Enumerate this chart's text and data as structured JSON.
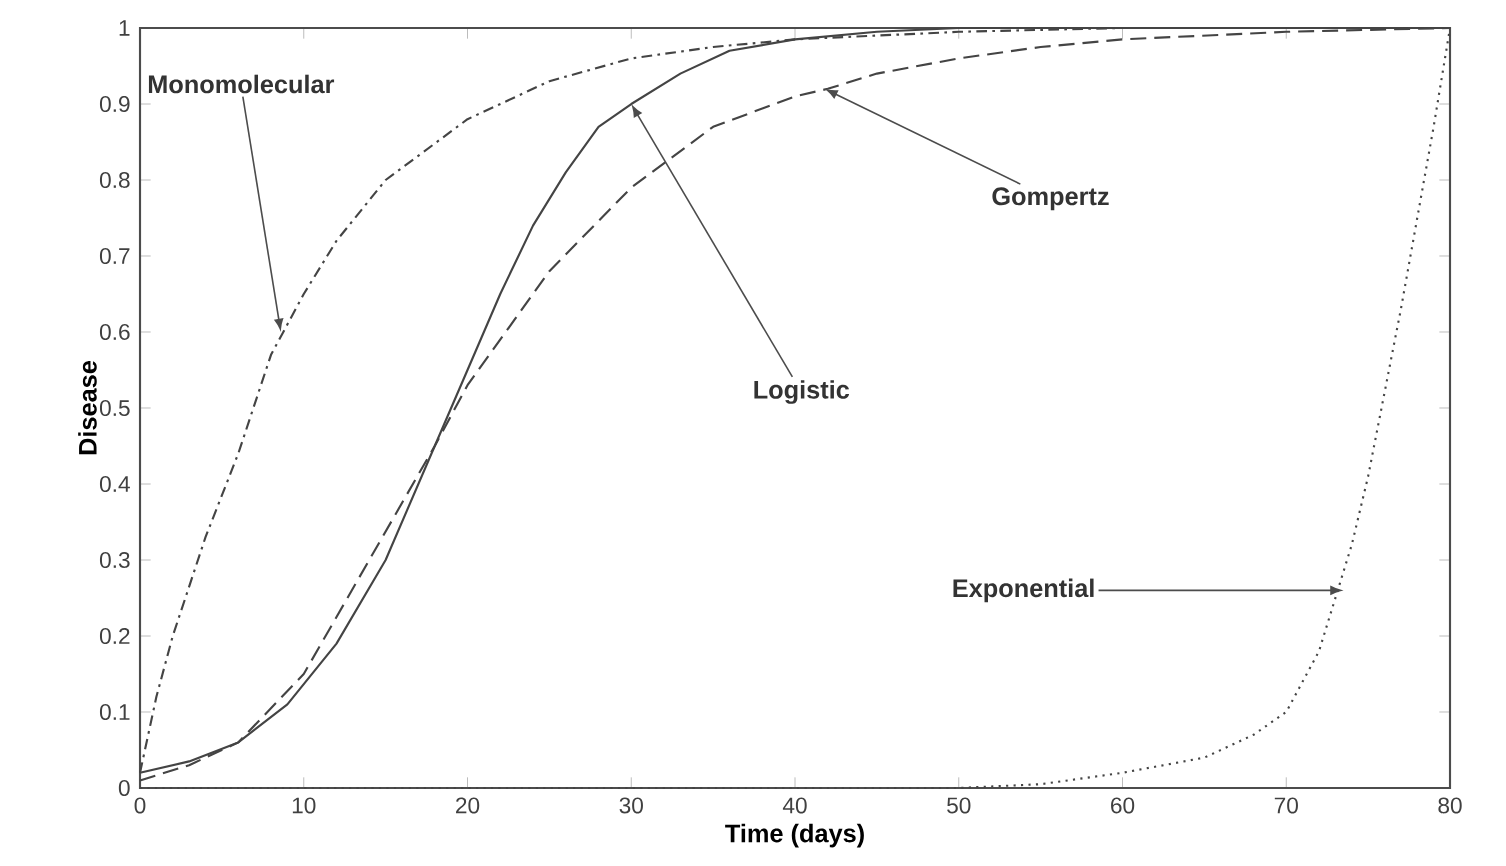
{
  "chart_data": {
    "type": "line",
    "xlabel": "Time (days)",
    "ylabel": "Disease",
    "xlim": [
      0,
      80
    ],
    "ylim": [
      0,
      1
    ],
    "xticks": [
      0,
      10,
      20,
      30,
      40,
      50,
      60,
      70,
      80
    ],
    "yticks": [
      0,
      0.1,
      0.2,
      0.3,
      0.4,
      0.5,
      0.6,
      0.7,
      0.8,
      0.9,
      1
    ],
    "series": [
      {
        "color": "#444444",
        "line_style": "dashdot",
        "x": [
          0,
          1,
          2,
          4,
          6,
          8,
          10,
          12,
          15,
          20,
          25,
          30,
          35,
          40,
          50,
          60,
          70,
          80
        ],
        "values": [
          0.02,
          0.12,
          0.2,
          0.33,
          0.44,
          0.57,
          0.65,
          0.72,
          0.8,
          0.88,
          0.93,
          0.96,
          0.975,
          0.985,
          0.995,
          1,
          1,
          1
        ]
      },
      {
        "color": "#444444",
        "line_style": "solid",
        "x": [
          0,
          3,
          6,
          9,
          12,
          15,
          18,
          20,
          22,
          24,
          26,
          28,
          30,
          33,
          36,
          40,
          45,
          50,
          60,
          70,
          80
        ],
        "values": [
          0.02,
          0.035,
          0.06,
          0.11,
          0.19,
          0.3,
          0.45,
          0.55,
          0.65,
          0.74,
          0.81,
          0.87,
          0.9,
          0.94,
          0.97,
          0.985,
          0.995,
          1,
          1,
          1,
          1
        ]
      },
      {
        "color": "#444444",
        "line_style": "dashed",
        "x": [
          0,
          3,
          6,
          10,
          14,
          18,
          20,
          25,
          30,
          35,
          40,
          42,
          45,
          50,
          55,
          60,
          70,
          80
        ],
        "values": [
          0.01,
          0.03,
          0.06,
          0.15,
          0.3,
          0.45,
          0.53,
          0.68,
          0.79,
          0.87,
          0.91,
          0.92,
          0.94,
          0.96,
          0.975,
          0.985,
          0.995,
          1
        ]
      },
      {
        "color": "#444444",
        "line_style": "dotted",
        "x": [
          0,
          50,
          55,
          60,
          65,
          68,
          70,
          72,
          73,
          74,
          75,
          76,
          77,
          78,
          79,
          80
        ],
        "values": [
          0,
          0,
          0.005,
          0.02,
          0.04,
          0.07,
          0.1,
          0.18,
          0.25,
          0.32,
          0.41,
          0.52,
          0.63,
          0.75,
          0.87,
          1
        ]
      }
    ],
    "annotations": [
      {
        "text": "Monomolecular",
        "x": 8.6,
        "y": 0.6
      },
      {
        "text": "Logistic",
        "x": 30,
        "y": 0.9
      },
      {
        "text": "Gompertz",
        "x": 41.8,
        "y": 0.92
      },
      {
        "text": "Exponential",
        "x": 73.5,
        "y": 0.26
      }
    ]
  }
}
